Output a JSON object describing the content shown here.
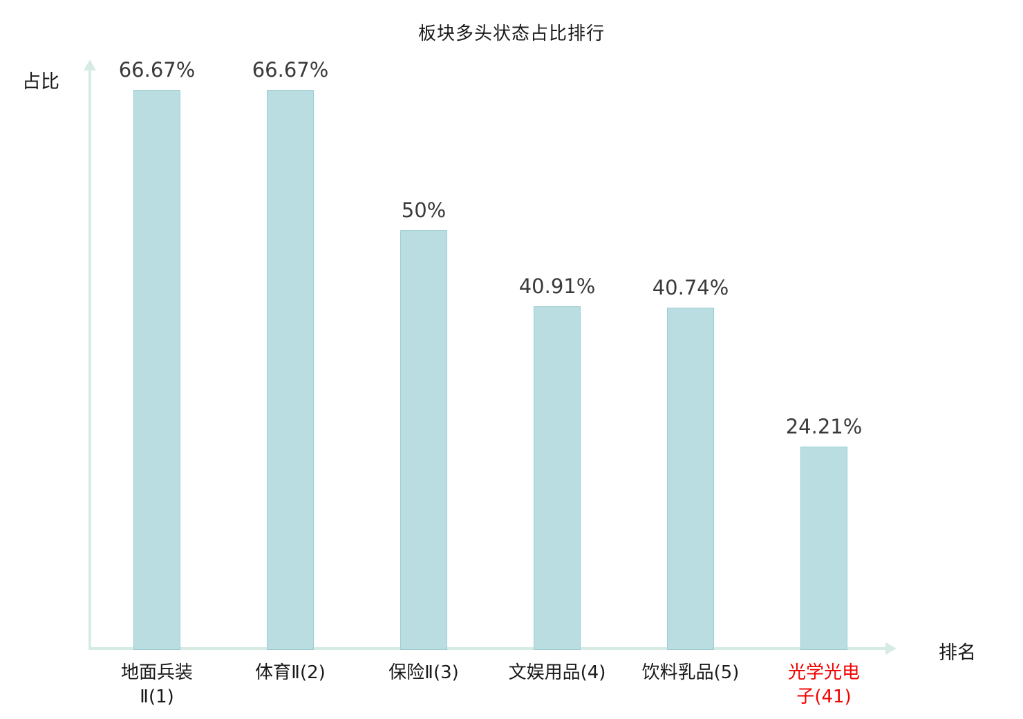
{
  "title": "板块多头状态占比排行",
  "y_axis_label": "占比",
  "x_axis_label": "排名",
  "chart_data": {
    "type": "bar",
    "title": "板块多头状态占比排行",
    "xlabel": "排名",
    "ylabel": "占比",
    "categories": [
      "地面兵装Ⅱ(1)",
      "体育Ⅱ(2)",
      "保险Ⅱ(3)",
      "文娱用品(4)",
      "饮料乳品(5)",
      "光学光电子(41)"
    ],
    "category_display": [
      "地面兵装\nⅡ(1)",
      "体育Ⅱ(2)",
      "保险Ⅱ(3)",
      "文娱用品(4)",
      "饮料乳品(5)",
      "光学光电\n子(41)"
    ],
    "values": [
      66.67,
      66.67,
      50,
      40.91,
      40.74,
      24.21
    ],
    "value_labels": [
      "66.67%",
      "66.67%",
      "50%",
      "40.91%",
      "40.74%",
      "24.21%"
    ],
    "ylim": [
      0,
      70
    ],
    "grid": false,
    "legend": "none",
    "highlight_index": 5,
    "colors": {
      "bar_fill": "#b9dde1",
      "bar_border": "#9bcdd3",
      "axis": "#d6ece2",
      "value_label_text": "#3a3a3a",
      "category_text": "#1a1a1a",
      "highlight_text": "#f20000"
    }
  }
}
